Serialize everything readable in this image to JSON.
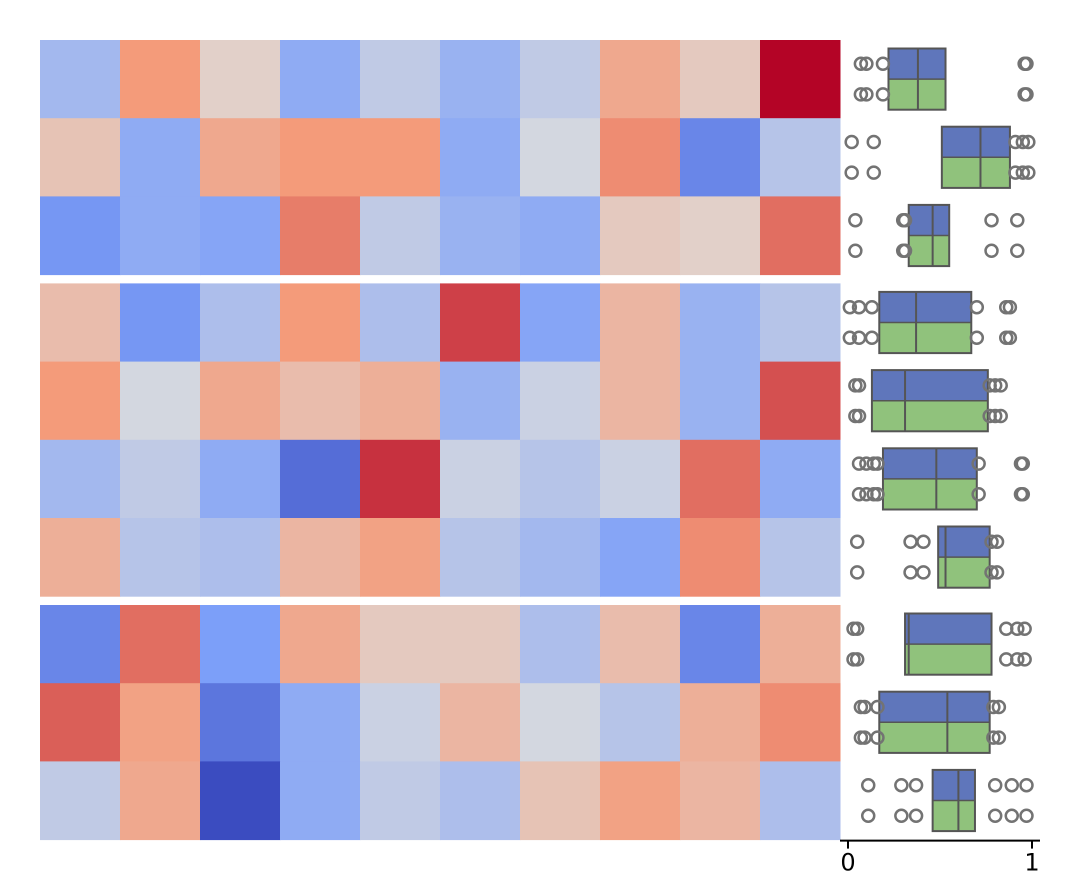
{
  "chart_data": [
    {
      "type": "heatmap",
      "title": "",
      "xlabel": "",
      "ylabel": "",
      "colormap": "coolwarm",
      "value_range": [
        -1,
        1
      ],
      "row_groups": [
        3,
        4,
        3
      ],
      "values": [
        [
          -0.3,
          0.5,
          0.1,
          -0.4,
          -0.15,
          -0.35,
          -0.15,
          0.4,
          0.15,
          1.0
        ],
        [
          0.2,
          -0.4,
          0.4,
          0.5,
          0.5,
          -0.4,
          -0.05,
          0.55,
          -0.65,
          -0.2
        ],
        [
          -0.55,
          -0.4,
          -0.45,
          0.6,
          -0.15,
          -0.35,
          -0.4,
          0.15,
          0.1,
          0.65
        ],
        [
          0.25,
          -0.55,
          -0.25,
          0.5,
          -0.25,
          0.8,
          -0.45,
          0.3,
          -0.35,
          -0.2
        ],
        [
          0.5,
          -0.05,
          0.4,
          0.25,
          0.35,
          -0.35,
          -0.1,
          0.3,
          -0.35,
          0.75
        ],
        [
          -0.3,
          -0.15,
          -0.4,
          -0.8,
          0.85,
          -0.1,
          -0.2,
          -0.1,
          0.65,
          -0.4
        ],
        [
          0.35,
          -0.2,
          -0.25,
          0.3,
          0.45,
          -0.2,
          -0.3,
          -0.45,
          0.55,
          -0.2
        ],
        [
          -0.65,
          0.65,
          -0.5,
          0.4,
          0.15,
          0.15,
          -0.25,
          0.25,
          -0.65,
          0.35
        ],
        [
          0.7,
          0.45,
          -0.75,
          -0.4,
          -0.1,
          0.3,
          -0.05,
          -0.2,
          0.35,
          0.55
        ],
        [
          -0.15,
          0.4,
          -1.0,
          -0.4,
          -0.15,
          -0.25,
          0.2,
          0.45,
          0.3,
          -0.25
        ]
      ]
    },
    {
      "type": "box",
      "title": "",
      "xlabel": "",
      "ylabel": "",
      "xlim": [
        0,
        1
      ],
      "xticks": [
        0,
        1
      ],
      "xtick_labels": [
        "0",
        "1"
      ],
      "colors": {
        "series_a": "#5f76bb",
        "series_b": "#90c27c",
        "outline": "#555555",
        "outlier": "#737373"
      },
      "row_groups": [
        3,
        4,
        3
      ],
      "boxes": [
        {
          "q1": 0.22,
          "median": 0.38,
          "q3": 0.53,
          "outliers": [
            0.07,
            0.1,
            0.19,
            0.96,
            0.97
          ]
        },
        {
          "q1": 0.51,
          "median": 0.72,
          "q3": 0.88,
          "outliers": [
            0.02,
            0.14,
            0.91,
            0.95,
            0.98
          ]
        },
        {
          "q1": 0.33,
          "median": 0.46,
          "q3": 0.55,
          "outliers": [
            0.04,
            0.3,
            0.31,
            0.78,
            0.92
          ]
        },
        {
          "q1": 0.17,
          "median": 0.37,
          "q3": 0.67,
          "outliers": [
            0.01,
            0.06,
            0.13,
            0.7,
            0.86,
            0.88
          ]
        },
        {
          "q1": 0.13,
          "median": 0.31,
          "q3": 0.76,
          "outliers": [
            0.04,
            0.06,
            0.77,
            0.8,
            0.83
          ]
        },
        {
          "q1": 0.19,
          "median": 0.48,
          "q3": 0.7,
          "outliers": [
            0.06,
            0.1,
            0.14,
            0.16,
            0.71,
            0.94,
            0.95
          ]
        },
        {
          "q1": 0.49,
          "median": 0.53,
          "q3": 0.77,
          "outliers": [
            0.05,
            0.34,
            0.41,
            0.78,
            0.81
          ]
        },
        {
          "q1": 0.31,
          "median": 0.33,
          "q3": 0.78,
          "outliers": [
            0.03,
            0.05,
            0.86,
            0.92,
            0.96
          ]
        },
        {
          "q1": 0.17,
          "median": 0.54,
          "q3": 0.77,
          "outliers": [
            0.07,
            0.09,
            0.16,
            0.79,
            0.82
          ]
        },
        {
          "q1": 0.46,
          "median": 0.6,
          "q3": 0.69,
          "outliers": [
            0.11,
            0.29,
            0.37,
            0.8,
            0.89,
            0.97
          ]
        }
      ]
    }
  ]
}
